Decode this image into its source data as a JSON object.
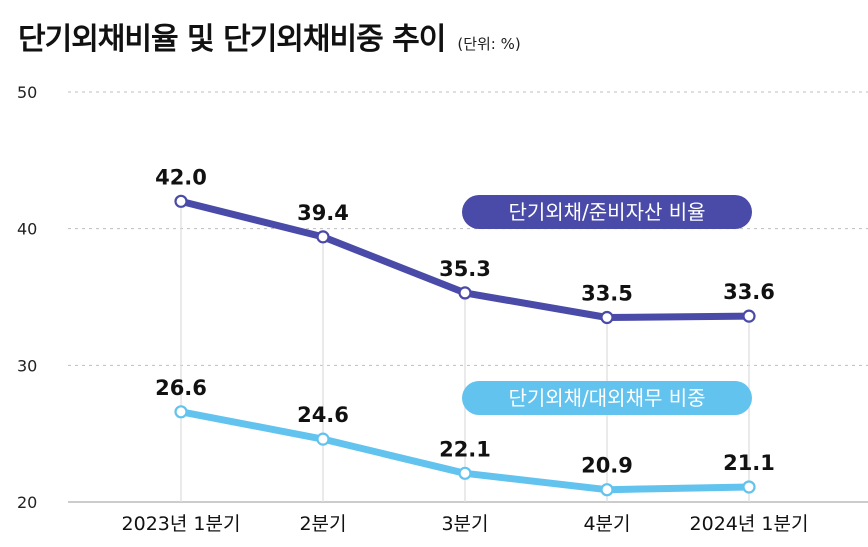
{
  "header": {
    "title": "단기외채비율 및 단기외채비중 추이",
    "unit": "(단위: %)"
  },
  "colors": {
    "series1": "#4a4aa8",
    "series2": "#62c3ee",
    "grid": "#bfbfbf",
    "vline": "#dcdcdc"
  },
  "chart_data": {
    "type": "line",
    "categories": [
      "2023년 1분기",
      "2분기",
      "3분기",
      "4분기",
      "2024년 1분기"
    ],
    "series": [
      {
        "name": "단기외채/준비자산 비율",
        "values": [
          42.0,
          39.4,
          35.3,
          33.5,
          33.6
        ],
        "labels": [
          "42.0",
          "39.4",
          "35.3",
          "33.5",
          "33.6"
        ]
      },
      {
        "name": "단기외채/대외채무 비중",
        "values": [
          26.6,
          24.6,
          22.1,
          20.9,
          21.1
        ],
        "labels": [
          "26.6",
          "24.6",
          "22.1",
          "20.9",
          "21.1"
        ]
      }
    ],
    "yticks": [
      "50",
      "40",
      "30",
      "20"
    ],
    "ylim": [
      20,
      50
    ],
    "grid": true,
    "legend": "inline-labels"
  }
}
